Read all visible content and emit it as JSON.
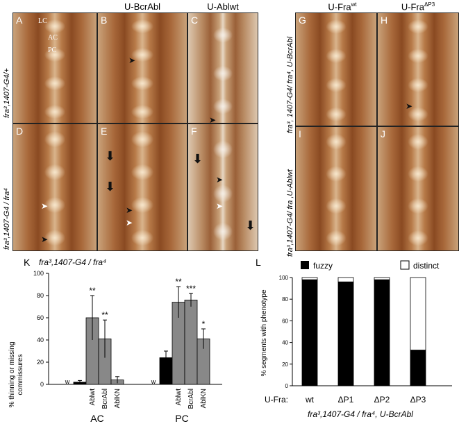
{
  "figure": {
    "column_titles": {
      "b": "U-BcrAbl",
      "c": "U-Ablwt",
      "g": "U-Fra",
      "g_sup": "wt",
      "h": "U-Fra",
      "h_sup": "ΔP3"
    },
    "row_labels": {
      "top_left": "fra³,1407-G4/+",
      "bottom_left": "fra³,1407-G4 / fra⁴",
      "top_right": "fra³, 1407-G4/ fra⁴, U-BcrAbl",
      "bottom_right": "fra³,1407-G4/ fra ,U-Ablwt"
    },
    "panel_letters": [
      "A",
      "B",
      "C",
      "D",
      "E",
      "F",
      "G",
      "H",
      "I",
      "J"
    ],
    "tissue_labels": {
      "lc": "LC",
      "ac": "AC",
      "pc": "PC"
    }
  },
  "panel_k": {
    "letter": "K",
    "title": "fra³,1407-G4 / fra⁴",
    "ylabel_line1": "% thinning or missing",
    "ylabel_line2": "commissures",
    "group_ac": "AC",
    "group_pc": "PC"
  },
  "panel_l": {
    "letter": "L",
    "legend_fuzzy": "fuzzy",
    "legend_distinct": "distinct",
    "ylabel": "% segments with phenotype",
    "xprefix": "U-Fra:",
    "footer": "fra³,1407-G4 / fra⁴, U-BcrAbl"
  },
  "chart_data": [
    {
      "type": "bar",
      "title": "fra³,1407-G4 / fra⁴",
      "ylabel": "% thinning or missing commissures",
      "ylim": [
        0,
        100
      ],
      "yticks": [
        0,
        20,
        40,
        60,
        80,
        100
      ],
      "groups": [
        "AC",
        "PC"
      ],
      "categories": [
        "w",
        "",
        "Ablwt",
        "BcrAbl",
        "AblKN"
      ],
      "series": [
        {
          "group": "AC",
          "values": [
            0.5,
            2,
            60,
            41,
            4
          ],
          "errors": [
            0,
            1.5,
            20,
            17,
            3
          ],
          "colors": [
            "#888888",
            "#000000",
            "#888888",
            "#888888",
            "#888888"
          ],
          "stars": [
            "",
            "",
            "**",
            "**",
            ""
          ]
        },
        {
          "group": "PC",
          "values": [
            0.5,
            24,
            74,
            76,
            41
          ],
          "errors": [
            0,
            6,
            14,
            6,
            9
          ],
          "colors": [
            "#888888",
            "#000000",
            "#888888",
            "#888888",
            "#888888"
          ],
          "stars": [
            "",
            "",
            "**",
            "***",
            "*"
          ]
        }
      ],
      "grid": false
    },
    {
      "type": "bar",
      "stacked": true,
      "ylabel": "% segments with phenotype",
      "ylim": [
        0,
        100
      ],
      "yticks": [
        0,
        20,
        40,
        60,
        80,
        100
      ],
      "categories": [
        "wt",
        "ΔP1",
        "ΔP2",
        "ΔP3"
      ],
      "series": [
        {
          "name": "fuzzy",
          "color": "#000000",
          "values": [
            98,
            96,
            98,
            33
          ]
        },
        {
          "name": "distinct",
          "color": "#ffffff",
          "values": [
            2,
            4,
            2,
            67
          ]
        }
      ],
      "legend": "top"
    }
  ]
}
